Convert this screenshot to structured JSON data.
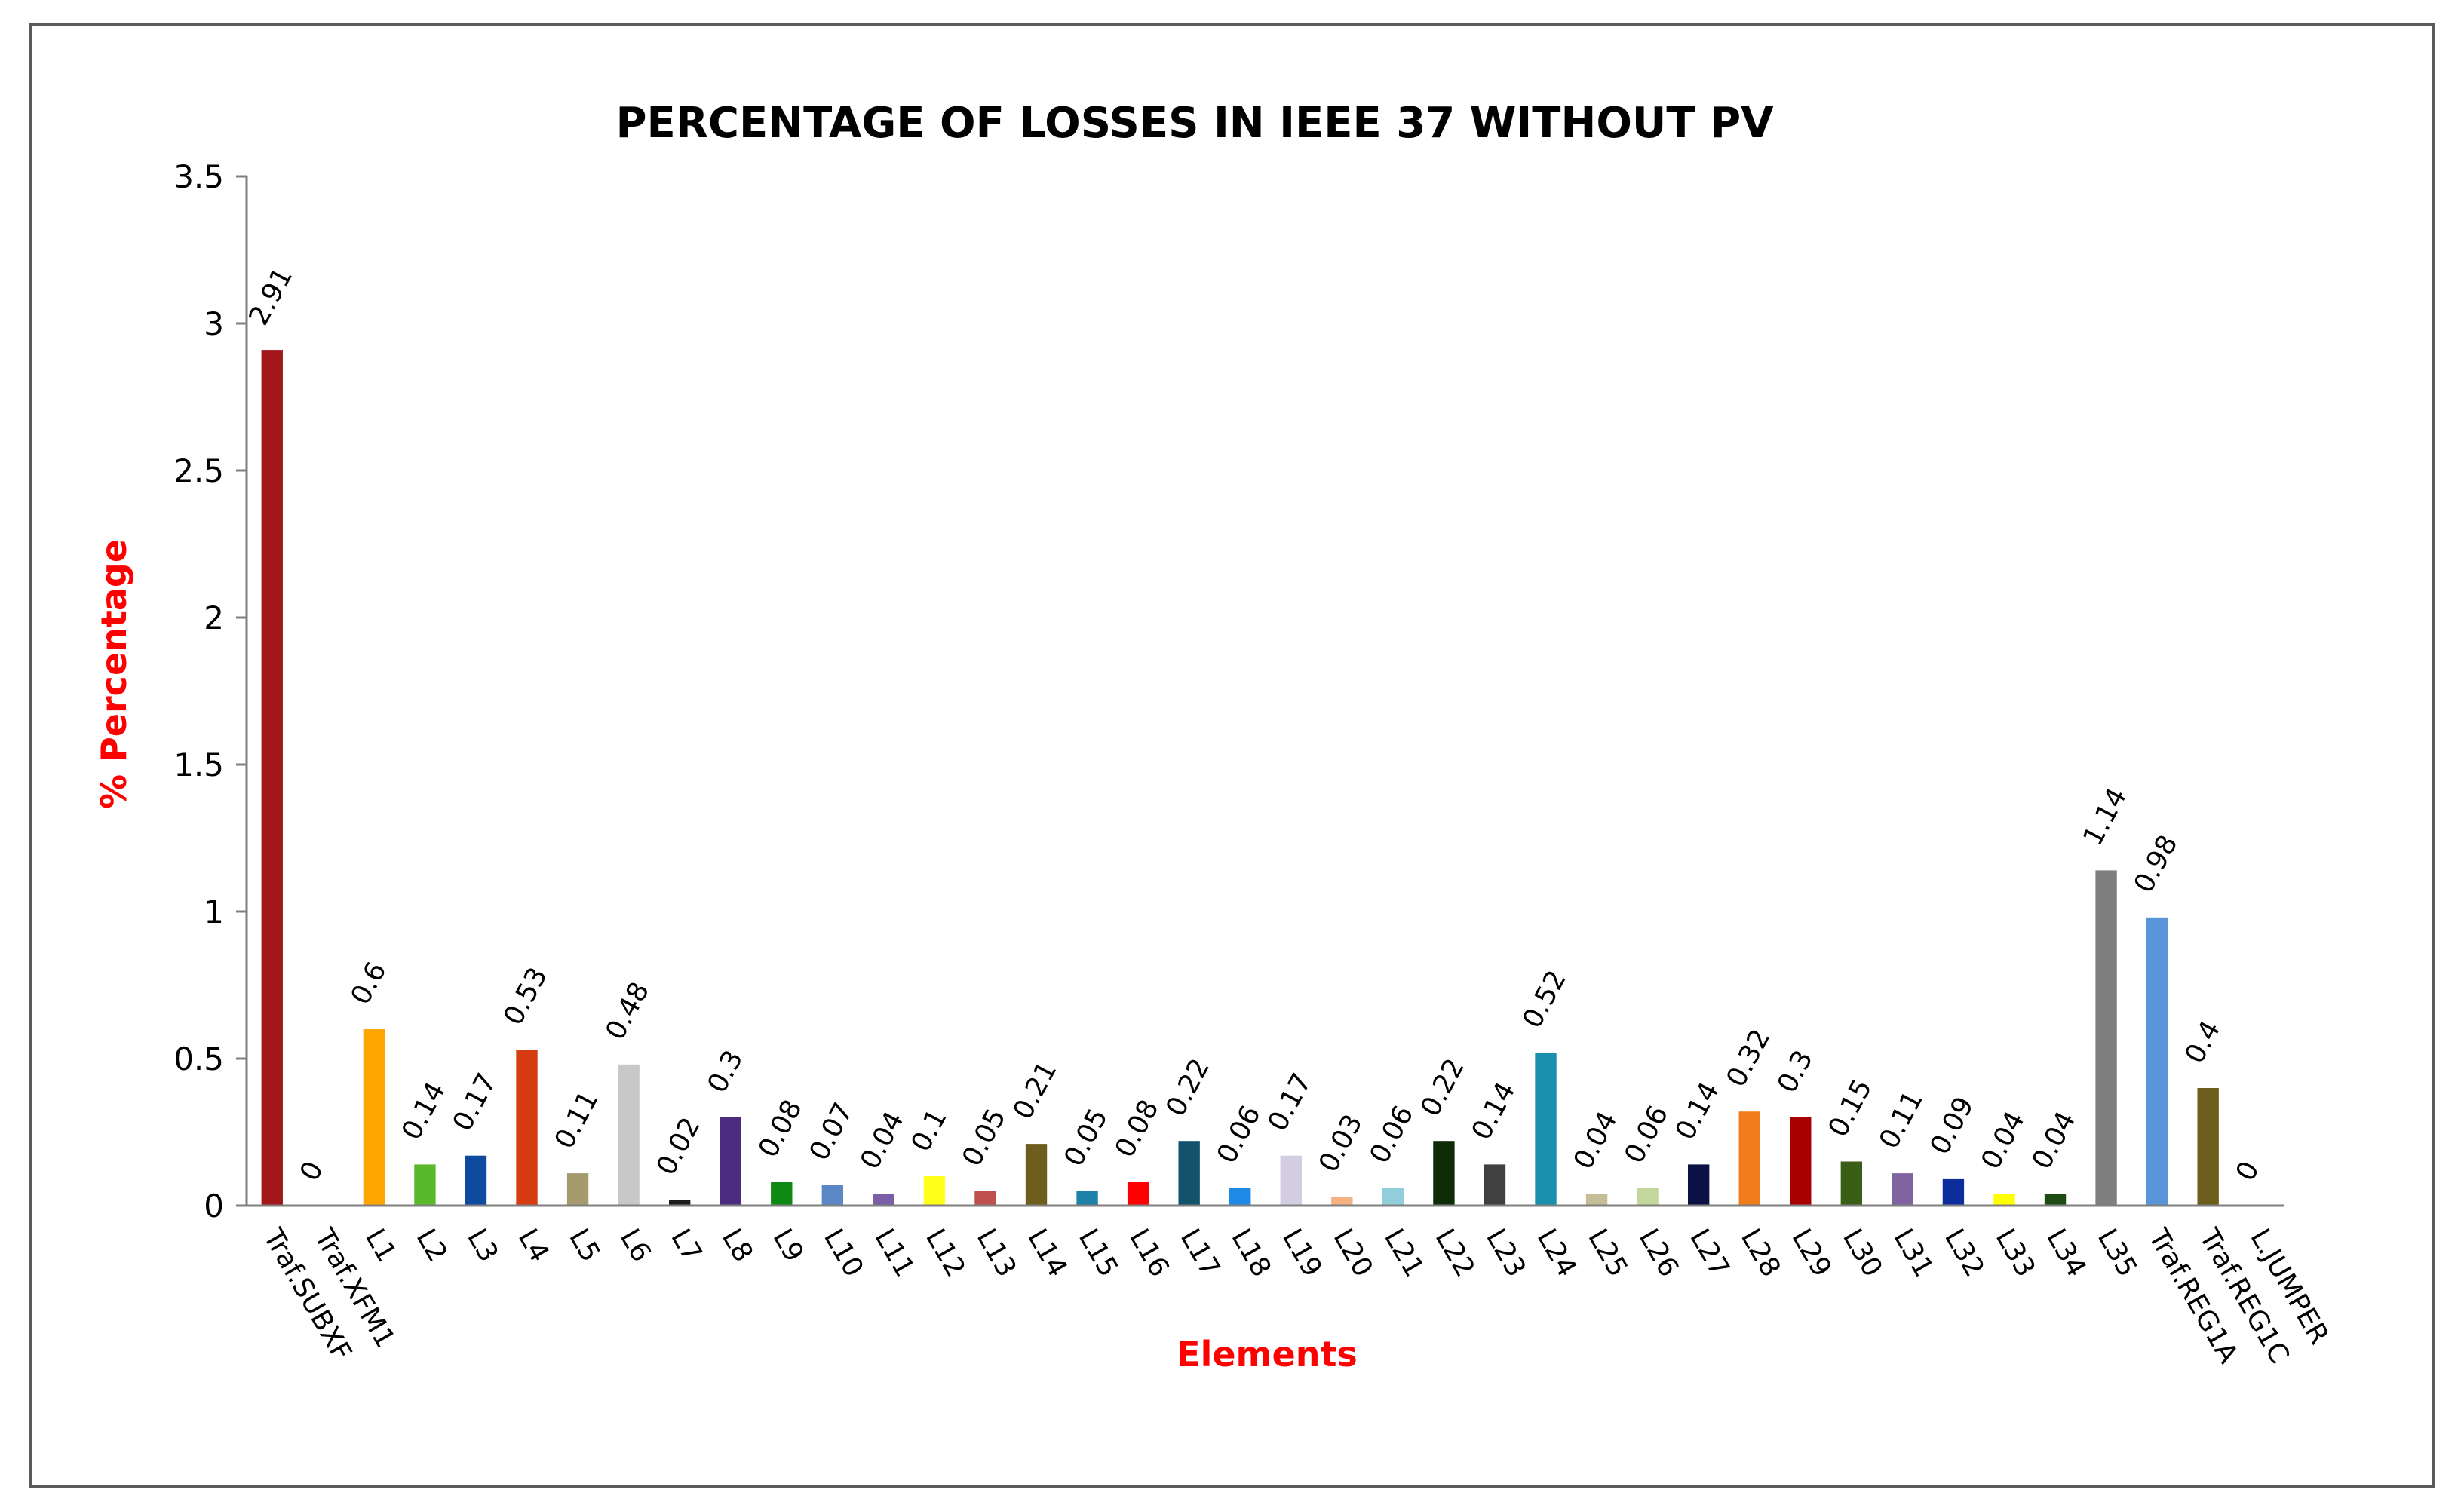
{
  "chart_data": {
    "type": "bar",
    "title": "PERCENTAGE OF LOSSES IN IEEE 37 WITHOUT PV",
    "xlabel": "Elements",
    "ylabel": "% Percentage",
    "ylim": [
      0,
      3.5
    ],
    "yticks": [
      "0",
      "0.5",
      "1",
      "1.5",
      "2",
      "2.5",
      "3",
      "3.5"
    ],
    "ytick_values": [
      0,
      0.5,
      1,
      1.5,
      2,
      2.5,
      3,
      3.5
    ],
    "grid": false,
    "legend": "none",
    "categories": [
      "Traf.SUBXF",
      "Traf.XFM1",
      "L1",
      "L2",
      "L3",
      "L4",
      "L5",
      "L6",
      "L7",
      "L8",
      "L9",
      "L10",
      "L11",
      "L12",
      "L13",
      "L14",
      "L15",
      "L16",
      "L17",
      "L18",
      "L19",
      "L20",
      "L21",
      "L22",
      "L23",
      "L24",
      "L25",
      "L26",
      "L27",
      "L28",
      "L29",
      "L30",
      "L31",
      "L32",
      "L33",
      "L34",
      "L35",
      "Traf.REG1A",
      "Traf.REG1C",
      "L.JUMPER"
    ],
    "values": [
      2.91,
      0,
      0.6,
      0.14,
      0.17,
      0.53,
      0.11,
      0.48,
      0.02,
      0.3,
      0.08,
      0.07,
      0.04,
      0.1,
      0.05,
      0.21,
      0.05,
      0.08,
      0.22,
      0.06,
      0.17,
      0.03,
      0.06,
      0.22,
      0.14,
      0.52,
      0.04,
      0.06,
      0.14,
      0.32,
      0.3,
      0.15,
      0.11,
      0.09,
      0.04,
      0.04,
      1.14,
      0.98,
      0.4,
      0
    ],
    "data_labels": [
      "2.91",
      "0",
      "0.6",
      "0.14",
      "0.17",
      "0.53",
      "0.11",
      "0.48",
      "0.02",
      "0.3",
      "0.08",
      "0.07",
      "0.04",
      "0.1",
      "0.05",
      "0.21",
      "0.05",
      "0.08",
      "0.22",
      "0.06",
      "0.17",
      "0.03",
      "0.06",
      "0.22",
      "0.14",
      "0.52",
      "0.04",
      "0.06",
      "0.14",
      "0.32",
      "0.3",
      "0.15",
      "0.11",
      "0.09",
      "0.04",
      "0.04",
      "1.14",
      "0.98",
      "0.4",
      "0"
    ],
    "colors": [
      "#a3161a",
      "#4f81bd",
      "#ffa500",
      "#5ab92b",
      "#0e4b9f",
      "#d63b12",
      "#a59b6c",
      "#c8c8c8",
      "#1b1b1b",
      "#4b2d7f",
      "#0e8a14",
      "#5b87c7",
      "#7a5ea6",
      "#ffff1a",
      "#c0504d",
      "#6e5e1e",
      "#1d81a8",
      "#ff0000",
      "#12536b",
      "#1e8ae6",
      "#d3cde2",
      "#f6b183",
      "#92cddc",
      "#0d2b06",
      "#404040",
      "#1b8fae",
      "#c4bd97",
      "#c3d69b",
      "#0b1145",
      "#f07c1a",
      "#a80000",
      "#3b5e16",
      "#8064a2",
      "#0c2d9c",
      "#ffff00",
      "#1c4c14",
      "#7f7f7f",
      "#5b95d9",
      "#6b5e1c",
      "#4f81bd"
    ]
  }
}
